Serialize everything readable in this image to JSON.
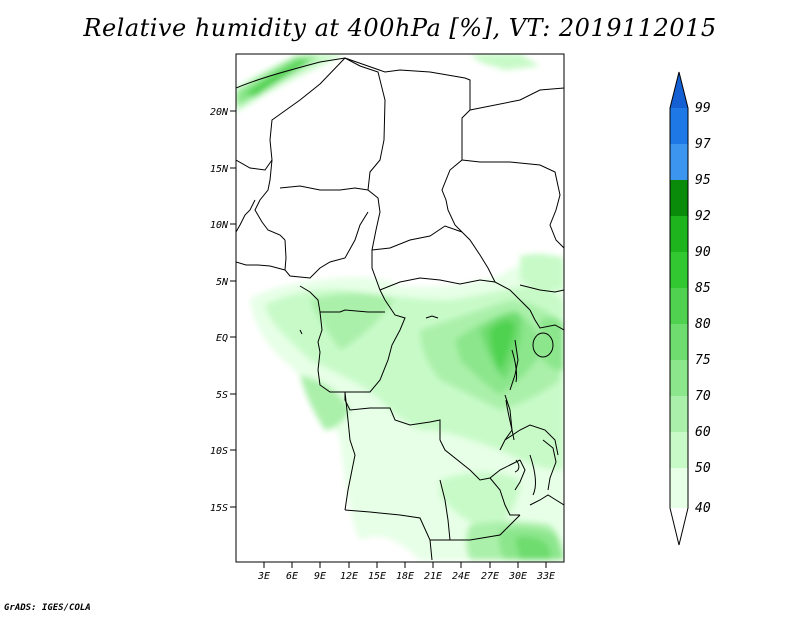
{
  "title": "Relative humidity at 400hPa [%], VT: 2019112015",
  "credit": "GrADS: IGES/COLA",
  "map": {
    "lat_labels": [
      "20N",
      "15N",
      "10N",
      "5N",
      "EQ",
      "5S",
      "10S",
      "15S"
    ],
    "lon_labels": [
      "3E",
      "6E",
      "9E",
      "12E",
      "15E",
      "18E",
      "21E",
      "24E",
      "27E",
      "30E",
      "33E"
    ]
  },
  "legend": {
    "labels": [
      "99",
      "97",
      "95",
      "92",
      "90",
      "85",
      "80",
      "75",
      "70",
      "60",
      "50",
      "40"
    ],
    "colors": [
      "#1460d2",
      "#1e78e6",
      "#3c96f0",
      "#0a8c0a",
      "#1eb41e",
      "#32c832",
      "#50d250",
      "#6edc6e",
      "#8ce68c",
      "#aaf0aa",
      "#c8fac8",
      "#e6ffe6"
    ]
  }
}
